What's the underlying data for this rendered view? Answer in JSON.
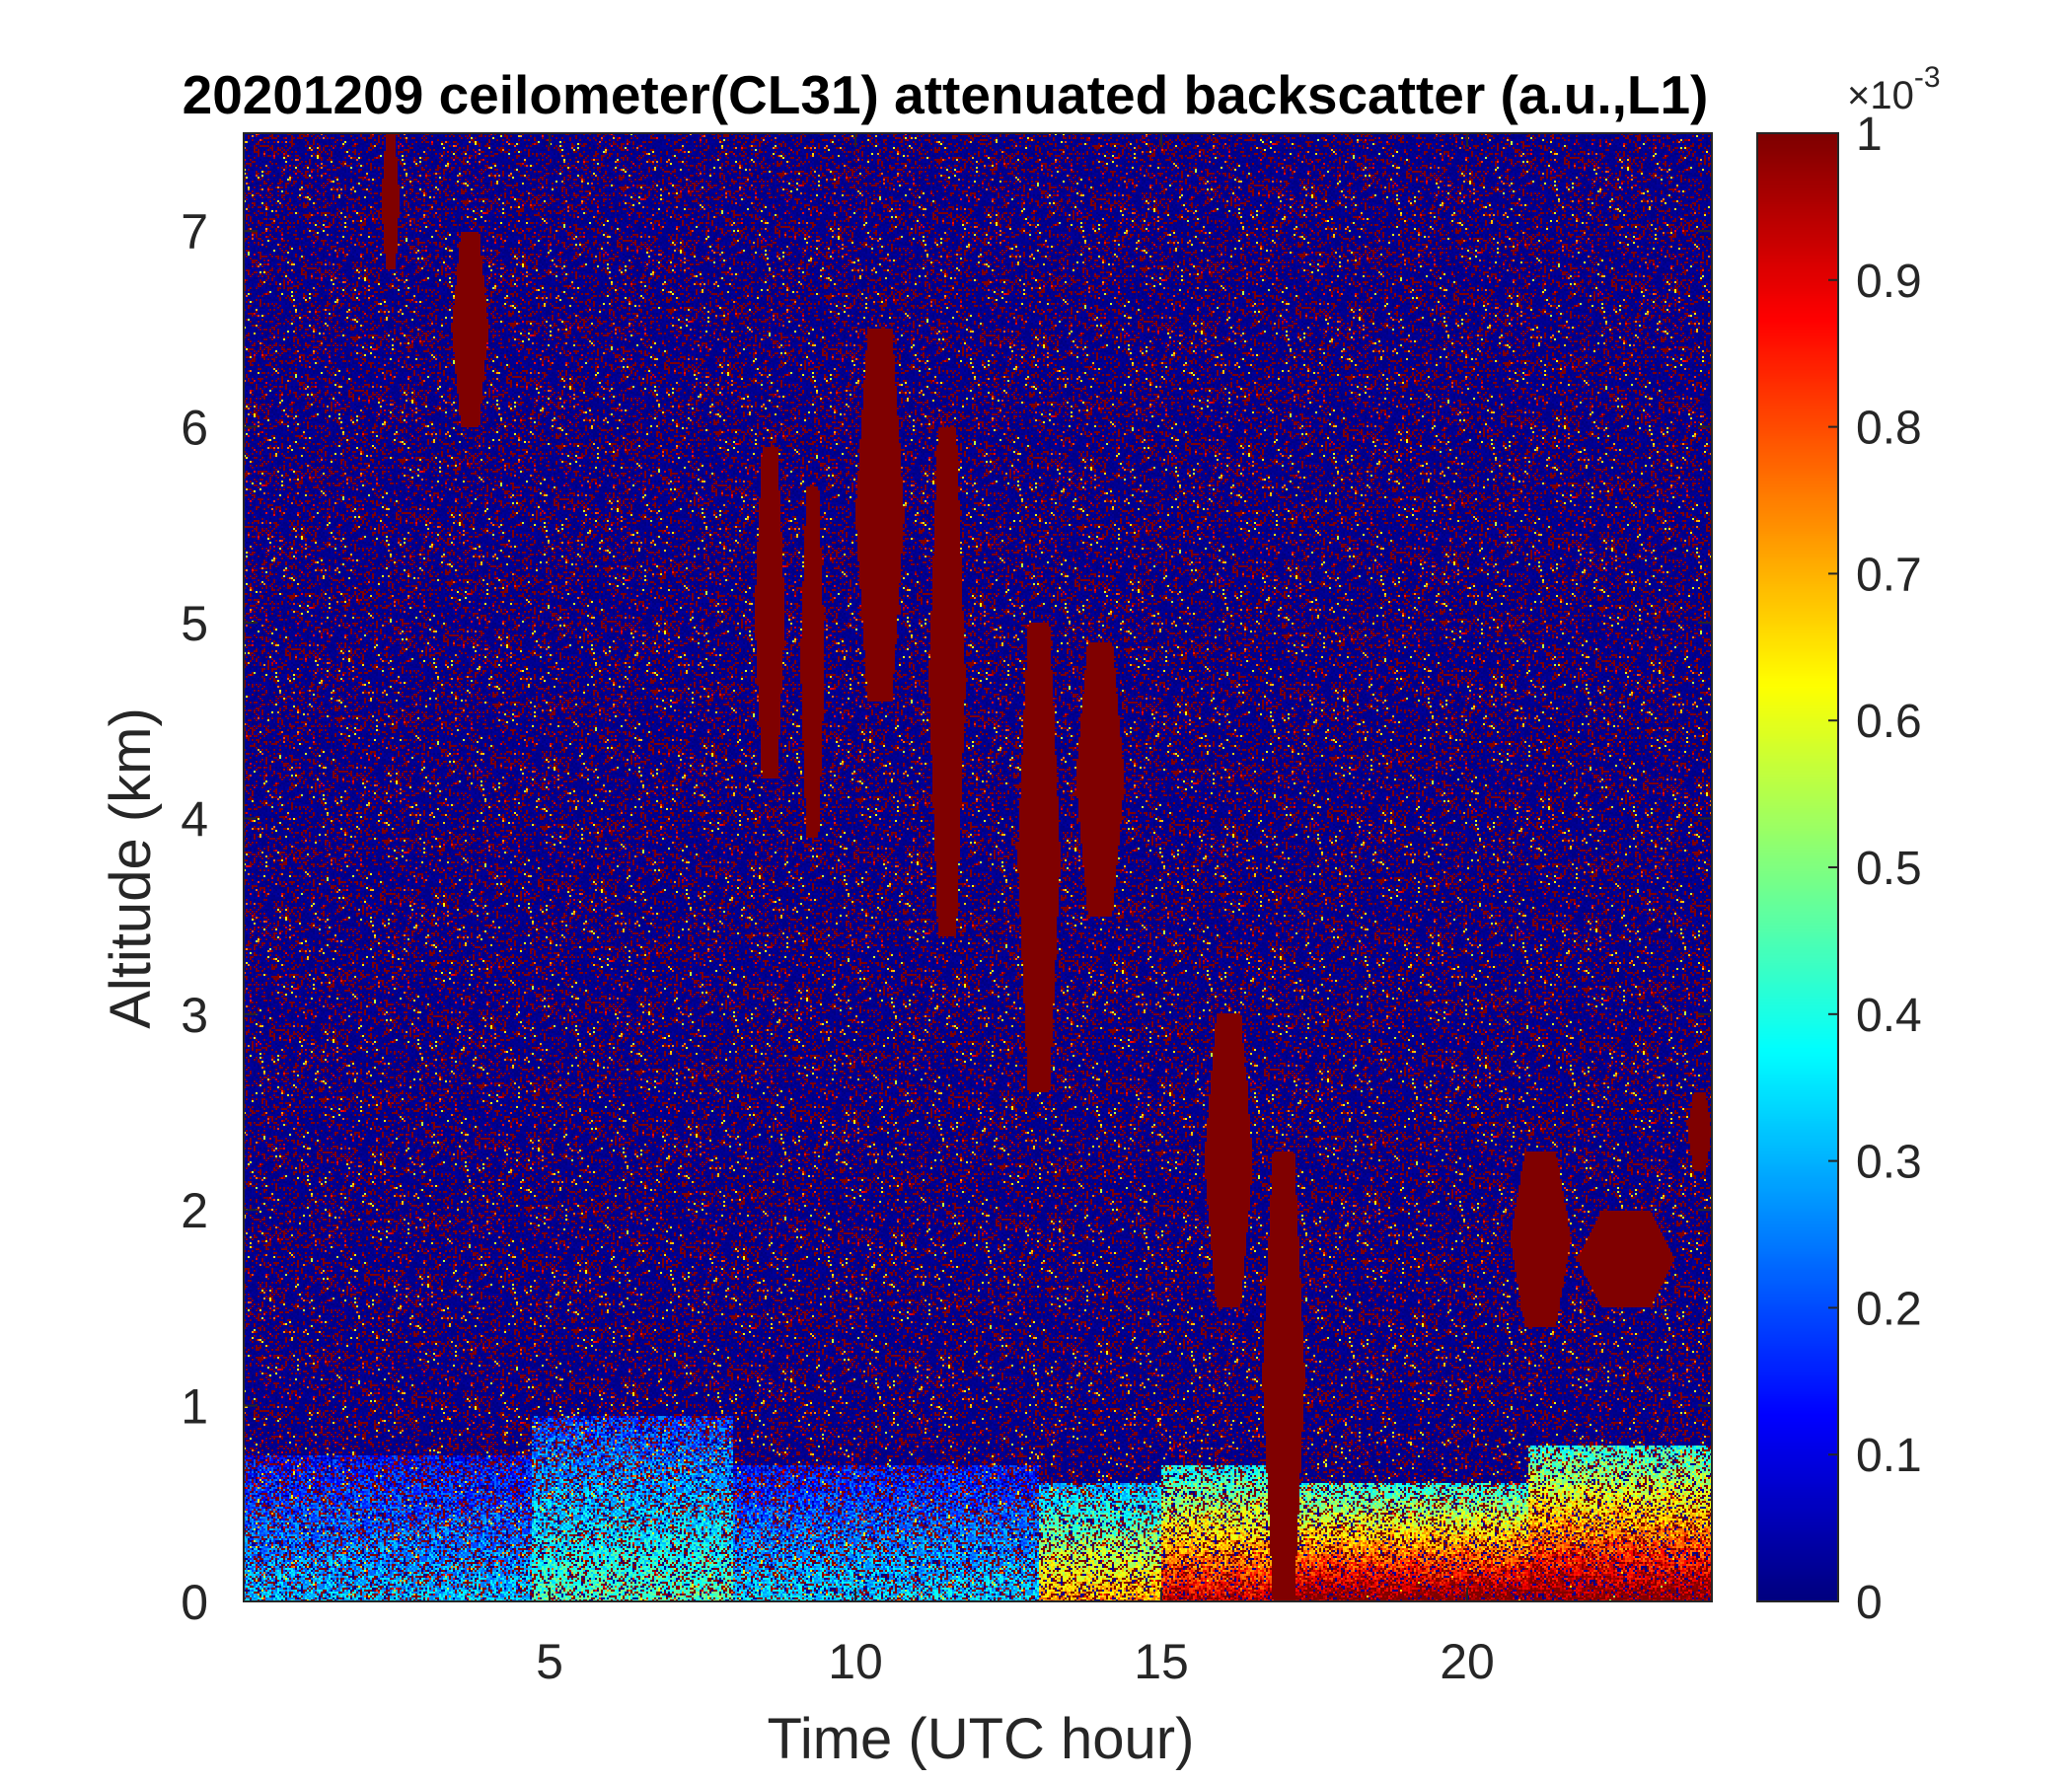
{
  "chart_data": {
    "type": "heatmap",
    "title": "20201209 ceilometer(CL31) attenuated backscatter (a.u.,L1)",
    "xlabel": "Time (UTC hour)",
    "ylabel": "Altitude (km)",
    "xlim": [
      0,
      24
    ],
    "ylim": [
      0,
      7.5
    ],
    "x_ticks": [
      5,
      10,
      15,
      20
    ],
    "y_ticks": [
      0,
      1,
      2,
      3,
      4,
      5,
      6,
      7
    ],
    "colorbar": {
      "colormap": "jet",
      "range": [
        0,
        1
      ],
      "exponent_label": "×10",
      "exponent_power": "-3",
      "ticks": [
        0,
        0.1,
        0.2,
        0.3,
        0.4,
        0.5,
        0.6,
        0.7,
        0.8,
        0.9,
        1
      ],
      "tick_labels": [
        "0",
        "0.1",
        "0.2",
        "0.3",
        "0.4",
        "0.5",
        "0.6",
        "0.7",
        "0.8",
        "0.9",
        "1"
      ]
    },
    "background_level": 0.03,
    "background_noise_level": 0.85,
    "boundary_layer": [
      {
        "t_start": 0,
        "t_end": 4.7,
        "top_km": 0.75,
        "value": 0.32
      },
      {
        "t_start": 4.7,
        "t_end": 8,
        "top_km": 0.95,
        "value": 0.45
      },
      {
        "t_start": 8,
        "t_end": 13,
        "top_km": 0.7,
        "value": 0.34
      },
      {
        "t_start": 13,
        "t_end": 15,
        "top_km": 0.6,
        "value": 0.72
      },
      {
        "t_start": 15,
        "t_end": 17,
        "top_km": 0.7,
        "value": 0.92
      },
      {
        "t_start": 17,
        "t_end": 21,
        "top_km": 0.6,
        "value": 1.0
      },
      {
        "t_start": 21,
        "t_end": 24,
        "top_km": 0.8,
        "value": 1.0
      }
    ],
    "cloud_features": [
      {
        "t": 2.4,
        "base_km": 6.8,
        "top_km": 7.5,
        "half_width_h": 0.15
      },
      {
        "t": 3.7,
        "base_km": 6.0,
        "top_km": 7.0,
        "half_width_h": 0.3
      },
      {
        "t": 8.6,
        "base_km": 4.2,
        "top_km": 5.9,
        "half_width_h": 0.25
      },
      {
        "t": 9.3,
        "base_km": 3.9,
        "top_km": 5.7,
        "half_width_h": 0.2
      },
      {
        "t": 10.4,
        "base_km": 4.6,
        "top_km": 6.5,
        "half_width_h": 0.4
      },
      {
        "t": 11.5,
        "base_km": 3.4,
        "top_km": 6.0,
        "half_width_h": 0.3
      },
      {
        "t": 13.0,
        "base_km": 2.6,
        "top_km": 5.0,
        "half_width_h": 0.35
      },
      {
        "t": 14.0,
        "base_km": 3.5,
        "top_km": 4.9,
        "half_width_h": 0.4
      },
      {
        "t": 16.1,
        "base_km": 1.5,
        "top_km": 3.0,
        "half_width_h": 0.4
      },
      {
        "t": 17.0,
        "base_km": 0.0,
        "top_km": 2.3,
        "half_width_h": 0.35
      },
      {
        "t": 21.2,
        "base_km": 1.4,
        "top_km": 2.3,
        "half_width_h": 0.5
      },
      {
        "t": 22.6,
        "base_km": 1.5,
        "top_km": 2.0,
        "half_width_h": 0.8
      },
      {
        "t": 23.8,
        "base_km": 2.2,
        "top_km": 2.6,
        "half_width_h": 0.2
      }
    ]
  }
}
